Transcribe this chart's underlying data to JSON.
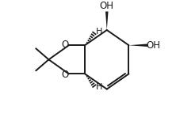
{
  "bg_color": "#ffffff",
  "line_color": "#1a1a1a",
  "line_width": 1.4,
  "font_size": 8.5,
  "figsize": [
    2.22,
    1.58
  ],
  "dpi": 100,
  "xlim": [
    -0.15,
    1.05
  ],
  "ylim": [
    -0.08,
    1.08
  ]
}
